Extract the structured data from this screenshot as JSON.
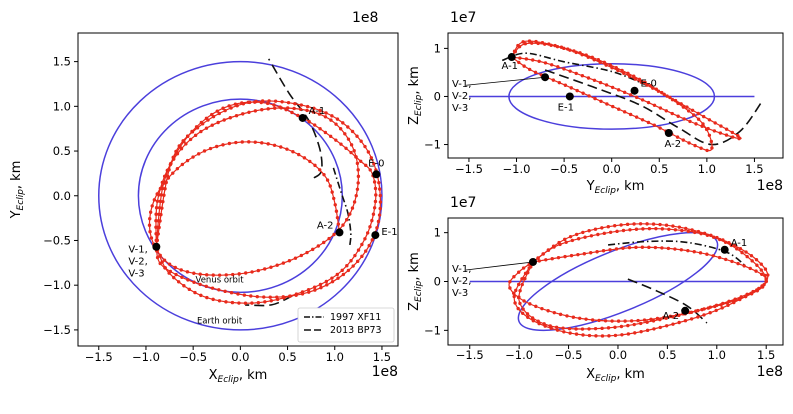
{
  "chart_data": [
    {
      "type": "line",
      "panel": "left",
      "xlabel": "X",
      "xlabel_sub": "Eclip",
      "xlabel_unit": ", km",
      "ylabel": "Y",
      "ylabel_sub": "Eclip",
      "ylabel_unit": ", km",
      "multiplier": "1e8",
      "x_mult_label": "1e8",
      "xlim": [
        -1.72,
        1.67
      ],
      "ylim": [
        -1.68,
        1.82
      ],
      "xticks": [
        -1.5,
        -1.0,
        -0.5,
        0.0,
        0.5,
        1.0,
        1.5
      ],
      "xtick_labels": [
        "−1.5",
        "−1.0",
        "−0.5",
        "0.0",
        "0.5",
        "1.0",
        "1.5"
      ],
      "yticks": [
        -1.5,
        -1.0,
        -0.5,
        0.0,
        0.5,
        1.0,
        1.5
      ],
      "ytick_labels": [
        "−1.5",
        "−1.0",
        "−0.5",
        "0.0",
        "0.5",
        "1.0",
        "1.5"
      ],
      "earth_orbit": {
        "center": [
          0.0,
          0.0
        ],
        "radius": 1.5
      },
      "venus_orbit": {
        "center": [
          0.0,
          0.0
        ],
        "radius": 1.08
      },
      "annotations": [
        {
          "text": "Venus orbit",
          "x": -0.22,
          "y": -0.97
        },
        {
          "text": "Earth orbit",
          "x": -0.22,
          "y": -1.43
        }
      ],
      "points": [
        {
          "label": "A-1",
          "x": 0.66,
          "y": 0.87
        },
        {
          "label": "E-0",
          "x": 1.44,
          "y": 0.24
        },
        {
          "label": "A-2",
          "x": 1.05,
          "y": -0.41
        },
        {
          "label": "E-1",
          "x": 1.43,
          "y": -0.44
        },
        {
          "label": "V-1,\nV-2,\nV-3",
          "x": -0.89,
          "y": -0.57
        }
      ],
      "series": [
        {
          "name": "1997 XF11",
          "style": "dashdot",
          "x": [
            1.16,
            1.17,
            1.14,
            1.07,
            0.98
          ],
          "y": [
            -0.55,
            -0.42,
            -0.2,
            0.03,
            0.33
          ]
        },
        {
          "name": "2013 BP73",
          "style": "dashed",
          "x": [
            0.78,
            0.86,
            0.84,
            0.72,
            0.52,
            0.3
          ],
          "y": [
            0.2,
            0.28,
            0.53,
            0.85,
            1.14,
            1.53
          ]
        },
        {
          "name": "2013 BP73",
          "style": "dashed",
          "x": [
            0.55,
            0.33,
            0.05
          ],
          "y": [
            -1.12,
            -1.22,
            -1.22
          ]
        },
        {
          "name": "trajectory-loop-1",
          "style": "dotted-red",
          "x": [
            -0.89,
            -0.88,
            -0.73,
            -0.43,
            0.04,
            0.52,
            0.94,
            1.2,
            1.24,
            1.07,
            0.66,
            0.13,
            -0.4,
            -0.77,
            -0.95,
            -0.92,
            -0.7,
            -0.38,
            0.0,
            0.38,
            0.7,
            0.91,
            1.0,
            1.05
          ],
          "y": [
            -0.57,
            -0.07,
            0.37,
            0.71,
            0.92,
            0.98,
            0.86,
            0.52,
            0.07,
            -0.35,
            -0.66,
            -0.85,
            -0.88,
            -0.75,
            -0.44,
            -0.07,
            0.27,
            0.5,
            0.6,
            0.56,
            0.41,
            0.2,
            -0.08,
            -0.41
          ]
        },
        {
          "name": "trajectory-loop-2",
          "style": "dotted-red",
          "x": [
            -0.89,
            -0.73,
            -0.43,
            0.04,
            0.52,
            1.01,
            1.35,
            1.48,
            1.42,
            1.15,
            0.72,
            0.2,
            -0.4,
            -0.82,
            -0.89
          ],
          "y": [
            -0.57,
            0.38,
            0.78,
            1.03,
            1.04,
            0.87,
            0.5,
            0.03,
            -0.44,
            -0.83,
            -1.08,
            -1.13,
            -1.0,
            -0.79,
            -0.57
          ]
        },
        {
          "name": "trajectory-loop-3",
          "style": "dotted-red",
          "x": [
            -0.89,
            -0.81,
            -0.56,
            -0.18,
            0.25,
            0.66,
            1.0,
            1.26,
            1.4,
            1.43,
            1.32,
            1.05,
            0.62,
            0.12,
            -0.38,
            -0.75,
            -0.89
          ],
          "y": [
            -0.57,
            0.15,
            0.66,
            0.98,
            1.04,
            0.87,
            0.63,
            0.4,
            0.24,
            -0.08,
            -0.48,
            -0.86,
            -1.09,
            -1.2,
            -1.13,
            -0.87,
            -0.57
          ]
        }
      ],
      "legend": {
        "position": "bottom-right",
        "entries": [
          {
            "label": "1997 XF11",
            "style": "dashdot"
          },
          {
            "label": "2013 BP73",
            "style": "dashed"
          }
        ]
      }
    },
    {
      "type": "line",
      "panel": "top-right",
      "xlabel": "Y",
      "xlabel_sub": "Eclip",
      "xlabel_unit": ", km",
      "ylabel": "Z",
      "ylabel_sub": "Eclip",
      "ylabel_unit": ", km",
      "multiplier": "1e7",
      "x_mult_label": "1e8",
      "xlim": [
        -1.72,
        1.8
      ],
      "ylim": [
        -1.28,
        1.32
      ],
      "xticks": [
        -1.5,
        -1.0,
        -0.5,
        0.0,
        0.5,
        1.0,
        1.5
      ],
      "xtick_labels": [
        "−1.5",
        "−1.0",
        "−0.5",
        "0.0",
        "0.5",
        "1.0",
        "1.5"
      ],
      "yticks": [
        -1,
        0,
        1
      ],
      "ytick_labels": [
        "−1",
        "0",
        "1"
      ],
      "earth_orbit": {
        "from": -1.5,
        "to": 1.5,
        "z": 0
      },
      "venus_orbit": {
        "center": [
          0.0,
          0.0
        ],
        "rx": 1.08,
        "rz": 0.68
      },
      "points": [
        {
          "label": "A-1",
          "x": -1.05,
          "y": 0.82
        },
        {
          "label": "E-0",
          "x": 0.24,
          "y": 0.12
        },
        {
          "label": "E-1",
          "x": -0.44,
          "y": 0.0
        },
        {
          "label": "A-2",
          "x": 0.6,
          "y": -0.76
        },
        {
          "label": "V-1,\nV-2,\nV-3",
          "x": -0.7,
          "y": 0.4
        }
      ],
      "series": [
        {
          "name": "1997 XF11",
          "style": "dashdot",
          "x": [
            -1.15,
            -0.9,
            -0.5,
            0.0,
            0.35
          ],
          "y": [
            0.75,
            0.9,
            0.72,
            0.52,
            0.25
          ]
        },
        {
          "name": "2013 BP73",
          "style": "dashed",
          "x": [
            -0.7,
            -0.2,
            0.3,
            0.7,
            1.05,
            1.35,
            1.58
          ],
          "y": [
            0.55,
            0.2,
            -0.18,
            -0.65,
            -1.0,
            -0.72,
            -0.1
          ]
        },
        {
          "name": "trajectory-loop-1",
          "style": "dotted-red",
          "x": [
            -1.05,
            -0.9,
            -0.5,
            0.0,
            0.5,
            0.95,
            1.35,
            1.2,
            0.8,
            0.3,
            -0.2,
            -0.7,
            -1.05
          ],
          "y": [
            0.82,
            1.1,
            1.0,
            0.6,
            0.1,
            -0.4,
            -0.85,
            -0.8,
            -0.5,
            -0.05,
            0.35,
            0.7,
            0.82
          ]
        },
        {
          "name": "trajectory-loop-2",
          "style": "dotted-red",
          "x": [
            -1.05,
            -0.9,
            -0.4,
            0.1,
            0.55,
            0.95,
            1.05,
            0.85,
            0.45,
            0.0,
            -0.45,
            -0.85,
            -1.05
          ],
          "y": [
            0.82,
            1.15,
            0.95,
            0.55,
            0.05,
            -0.55,
            -1.1,
            -1.0,
            -0.6,
            -0.2,
            0.2,
            0.55,
            0.82
          ]
        }
      ]
    },
    {
      "type": "line",
      "panel": "bottom-right",
      "xlabel": "X",
      "xlabel_sub": "Eclip",
      "xlabel_unit": ", km",
      "ylabel": "Z",
      "ylabel_sub": "Eclip",
      "ylabel_unit": ", km",
      "multiplier": "1e7",
      "x_mult_label": "1e8",
      "xlim": [
        -1.72,
        1.67
      ],
      "ylim": [
        -1.3,
        1.3
      ],
      "xticks": [
        -1.5,
        -1.0,
        -0.5,
        0.0,
        0.5,
        1.0,
        1.5
      ],
      "xtick_labels": [
        "−1.5",
        "−1.0",
        "−0.5",
        "0.0",
        "0.5",
        "1.0",
        "1.5"
      ],
      "yticks": [
        -1,
        0,
        1
      ],
      "ytick_labels": [
        "−1",
        "0",
        "1"
      ],
      "earth_orbit": {
        "from": -1.5,
        "to": 1.5,
        "z": 0
      },
      "venus_orbit": {
        "center": [
          0.0,
          0.0
        ],
        "rx": 1.08,
        "rz": 0.62,
        "rotation_deg": -22
      },
      "points": [
        {
          "label": "A-1",
          "x": 1.08,
          "y": 0.65
        },
        {
          "label": "A-2",
          "x": 0.68,
          "y": -0.6
        },
        {
          "label": "V-1,\nV-2,\nV-3",
          "x": -0.86,
          "y": 0.4
        }
      ],
      "series": [
        {
          "name": "1997 XF11",
          "style": "dashdot",
          "x": [
            -0.1,
            0.3,
            0.7,
            1.1,
            1.3
          ],
          "y": [
            0.75,
            0.82,
            0.8,
            0.6,
            0.3
          ]
        },
        {
          "name": "2013 BP73",
          "style": "dashed",
          "x": [
            0.1,
            0.4,
            0.7,
            0.9
          ],
          "y": [
            0.05,
            -0.2,
            -0.5,
            -0.85
          ]
        },
        {
          "name": "trajectory-loop-1",
          "style": "dotted-red",
          "x": [
            -0.86,
            -0.6,
            -0.1,
            0.4,
            0.9,
            1.25,
            1.5,
            1.3,
            0.8,
            0.2,
            -0.4,
            -0.9,
            -1.1,
            -1.0,
            -0.86
          ],
          "y": [
            0.4,
            0.75,
            1.0,
            1.08,
            0.95,
            0.6,
            0.05,
            -0.3,
            -0.6,
            -0.8,
            -0.75,
            -0.45,
            -0.1,
            0.2,
            0.4
          ]
        },
        {
          "name": "trajectory-loop-2",
          "style": "dotted-red",
          "x": [
            -0.86,
            -0.5,
            0.0,
            0.5,
            1.0,
            1.4,
            1.5,
            1.1,
            0.6,
            0.0,
            -0.5,
            -0.9,
            -1.05,
            -0.86
          ],
          "y": [
            0.4,
            0.9,
            1.15,
            1.15,
            0.9,
            0.45,
            0.0,
            -0.5,
            -0.85,
            -1.1,
            -1.05,
            -0.75,
            -0.3,
            0.4
          ]
        },
        {
          "name": "trajectory-loop-3",
          "style": "dotted-red",
          "x": [
            -0.86,
            -0.4,
            0.2,
            0.8,
            1.3,
            1.5,
            1.2,
            0.6,
            -0.1,
            -0.7,
            -1.0,
            -0.86
          ],
          "y": [
            0.4,
            0.55,
            0.7,
            0.6,
            0.3,
            0.0,
            -0.35,
            -0.7,
            -0.95,
            -0.9,
            -0.4,
            0.4
          ]
        }
      ]
    }
  ],
  "colors": {
    "orbit": "#4b3fdc",
    "trajectory": "#e82a1c",
    "neo": "#111111",
    "marker": "#000000"
  }
}
